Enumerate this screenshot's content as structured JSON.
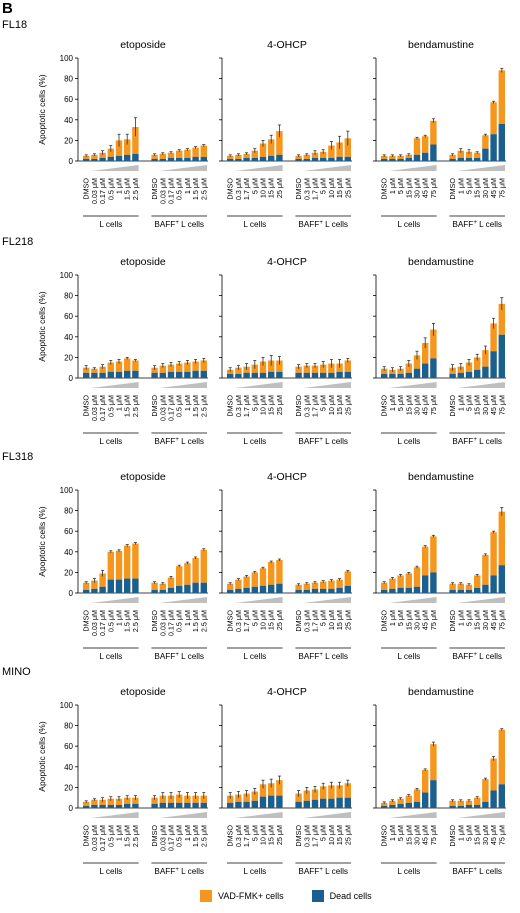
{
  "panel_label": "B",
  "ylabel": "Apoptotic cells (%)",
  "yticks": [
    0,
    20,
    40,
    60,
    80,
    100
  ],
  "ylim": [
    0,
    100
  ],
  "colors": {
    "vad": "#F5961E",
    "dead": "#1B5F8E",
    "err": "#333333",
    "wedge": "#BFBFBF"
  },
  "legend": {
    "vad": "VAD-FMK+ cells",
    "dead": "Dead cells"
  },
  "group_labels": [
    "L cells",
    "BAFF+ L cells"
  ],
  "drug_names": [
    "etoposide",
    "4-OHCP",
    "bendamustine"
  ],
  "dose_labels": {
    "etoposide": [
      "DMSO",
      "0.03 μM",
      "0.17 μM",
      "0.5 μM",
      "1 μM",
      "1.5 μM",
      "2.5 μM"
    ],
    "4-OHCP": [
      "DMSO",
      "0.3 μM",
      "1.7 μM",
      "5 μM",
      "10 μM",
      "15 μM",
      "25 μM"
    ],
    "bendamustine": [
      "DMSO",
      "1 μM",
      "5 μM",
      "15 μM",
      "30 μM",
      "45 μM",
      "75 μM"
    ]
  },
  "chart_data": [
    {
      "type": "bar",
      "title": "FL18",
      "series_names": [
        "VAD-FMK+ cells",
        "Dead cells"
      ],
      "drugs": [
        {
          "name": "etoposide",
          "total": [
            [
              5,
              6,
              8,
              12,
              20,
              21,
              33
            ],
            [
              6,
              7,
              8,
              10,
              11,
              13,
              15
            ]
          ],
          "dead": [
            [
              2,
              2,
              3,
              4,
              5,
              6,
              7
            ],
            [
              2,
              2,
              3,
              3,
              3,
              4,
              4
            ]
          ],
          "err": [
            [
              1,
              1,
              2,
              3,
              6,
              5,
              9
            ],
            [
              1,
              1,
              1,
              1,
              1,
              1,
              1
            ]
          ]
        },
        {
          "name": "4-OHCP",
          "total": [
            [
              5,
              6,
              7,
              10,
              17,
              21,
              29
            ],
            [
              5,
              6,
              8,
              9,
              15,
              18,
              22
            ]
          ],
          "dead": [
            [
              2,
              2,
              3,
              3,
              4,
              5,
              6
            ],
            [
              2,
              2,
              3,
              3,
              3,
              4,
              4
            ]
          ],
          "err": [
            [
              1,
              1,
              1,
              2,
              3,
              4,
              6
            ],
            [
              1,
              1,
              2,
              2,
              4,
              6,
              7
            ]
          ]
        },
        {
          "name": "bendamustine",
          "total": [
            [
              5,
              5,
              5,
              6,
              22,
              24,
              39
            ],
            [
              6,
              10,
              9,
              8,
              25,
              57,
              88
            ]
          ],
          "dead": [
            [
              2,
              2,
              2,
              3,
              6,
              8,
              16
            ],
            [
              2,
              3,
              3,
              3,
              12,
              26,
              36
            ]
          ],
          "err": [
            [
              1,
              1,
              1,
              1,
              1,
              1,
              2
            ],
            [
              1,
              2,
              2,
              1,
              1,
              1,
              2
            ]
          ]
        }
      ]
    },
    {
      "type": "bar",
      "title": "FL218",
      "series_names": [
        "VAD-FMK+ cells",
        "Dead cells"
      ],
      "drugs": [
        {
          "name": "etoposide",
          "total": [
            [
              10,
              9,
              11,
              15,
              16,
              19,
              17
            ],
            [
              10,
              12,
              13,
              14,
              15,
              16,
              17
            ]
          ],
          "dead": [
            [
              5,
              5,
              5,
              6,
              6,
              7,
              7
            ],
            [
              5,
              5,
              6,
              6,
              6,
              7,
              7
            ]
          ],
          "err": [
            [
              2,
              1,
              2,
              2,
              2,
              1,
              1
            ],
            [
              2,
              2,
              2,
              2,
              2,
              2,
              2
            ]
          ]
        },
        {
          "name": "4-OHCP",
          "total": [
            [
              8,
              10,
              11,
              13,
              16,
              17,
              17
            ],
            [
              11,
              12,
              12,
              13,
              14,
              14,
              17
            ]
          ],
          "dead": [
            [
              4,
              4,
              5,
              5,
              5,
              6,
              6
            ],
            [
              5,
              5,
              5,
              5,
              5,
              6,
              6
            ]
          ],
          "err": [
            [
              2,
              2,
              3,
              4,
              4,
              5,
              4
            ],
            [
              2,
              2,
              2,
              3,
              4,
              4,
              2
            ]
          ]
        },
        {
          "name": "bendamustine",
          "total": [
            [
              9,
              8,
              9,
              14,
              22,
              34,
              47
            ],
            [
              10,
              11,
              15,
              20,
              27,
              53,
              72
            ]
          ],
          "dead": [
            [
              4,
              4,
              4,
              5,
              9,
              14,
              19
            ],
            [
              4,
              5,
              6,
              8,
              11,
              26,
              42
            ]
          ],
          "err": [
            [
              2,
              2,
              2,
              3,
              4,
              5,
              6
            ],
            [
              3,
              3,
              3,
              3,
              4,
              5,
              6
            ]
          ]
        }
      ]
    },
    {
      "type": "bar",
      "title": "FL318",
      "series_names": [
        "VAD-FMK+ cells",
        "Dead cells"
      ],
      "drugs": [
        {
          "name": "etoposide",
          "total": [
            [
              10,
              12,
              19,
              40,
              41,
              46,
              48
            ],
            [
              10,
              9,
              15,
              26,
              29,
              34,
              42
            ]
          ],
          "dead": [
            [
              3,
              4,
              6,
              13,
              13,
              14,
              14
            ],
            [
              3,
              3,
              5,
              7,
              8,
              10,
              10
            ]
          ],
          "err": [
            [
              1,
              2,
              3,
              1,
              1,
              1,
              1
            ],
            [
              1,
              1,
              1,
              1,
              1,
              1,
              1
            ]
          ]
        },
        {
          "name": "4-OHCP",
          "total": [
            [
              9,
              13,
              16,
              20,
              24,
              30,
              32
            ],
            [
              8,
              9,
              10,
              11,
              12,
              13,
              21
            ]
          ],
          "dead": [
            [
              3,
              4,
              5,
              6,
              7,
              8,
              9
            ],
            [
              3,
              3,
              4,
              4,
              4,
              5,
              7
            ]
          ],
          "err": [
            [
              1,
              1,
              1,
              1,
              1,
              1,
              1
            ],
            [
              1,
              1,
              1,
              1,
              1,
              1,
              1
            ]
          ]
        },
        {
          "name": "bendamustine",
          "total": [
            [
              10,
              14,
              17,
              19,
              25,
              45,
              55
            ],
            [
              9,
              9,
              8,
              17,
              37,
              59,
              79
            ]
          ],
          "dead": [
            [
              3,
              4,
              5,
              5,
              6,
              17,
              20
            ],
            [
              3,
              3,
              3,
              5,
              8,
              17,
              27
            ]
          ],
          "err": [
            [
              1,
              1,
              1,
              1,
              1,
              1,
              1
            ],
            [
              1,
              1,
              1,
              1,
              1,
              1,
              4
            ]
          ]
        }
      ]
    },
    {
      "type": "bar",
      "title": "MINO",
      "series_names": [
        "VAD-FMK+ cells",
        "Dead cells"
      ],
      "drugs": [
        {
          "name": "etoposide",
          "total": [
            [
              6,
              8,
              8,
              9,
              9,
              10,
              10
            ],
            [
              10,
              12,
              12,
              13,
              12,
              12,
              12
            ]
          ],
          "dead": [
            [
              2,
              3,
              3,
              3,
              3,
              4,
              4
            ],
            [
              4,
              5,
              5,
              5,
              5,
              5,
              5
            ]
          ],
          "err": [
            [
              1,
              1,
              2,
              2,
              2,
              2,
              2
            ],
            [
              2,
              3,
              3,
              3,
              3,
              3,
              3
            ]
          ]
        },
        {
          "name": "4-OHCP",
          "total": [
            [
              12,
              13,
              14,
              16,
              23,
              24,
              27
            ],
            [
              14,
              17,
              18,
              21,
              22,
              22,
              24
            ]
          ],
          "dead": [
            [
              5,
              6,
              6,
              7,
              11,
              12,
              12
            ],
            [
              6,
              7,
              8,
              9,
              9,
              10,
              10
            ]
          ],
          "err": [
            [
              3,
              3,
              3,
              3,
              4,
              4,
              4
            ],
            [
              3,
              3,
              3,
              3,
              3,
              3,
              3
            ]
          ]
        },
        {
          "name": "bendamustine",
          "total": [
            [
              5,
              7,
              9,
              12,
              18,
              37,
              62
            ],
            [
              7,
              7,
              7,
              10,
              28,
              48,
              76
            ]
          ],
          "dead": [
            [
              2,
              3,
              4,
              5,
              6,
              15,
              27
            ],
            [
              2,
              2,
              3,
              3,
              6,
              17,
              23
            ]
          ],
          "err": [
            [
              1,
              1,
              1,
              1,
              1,
              1,
              2
            ],
            [
              1,
              1,
              1,
              1,
              1,
              2,
              1
            ]
          ]
        }
      ]
    }
  ]
}
